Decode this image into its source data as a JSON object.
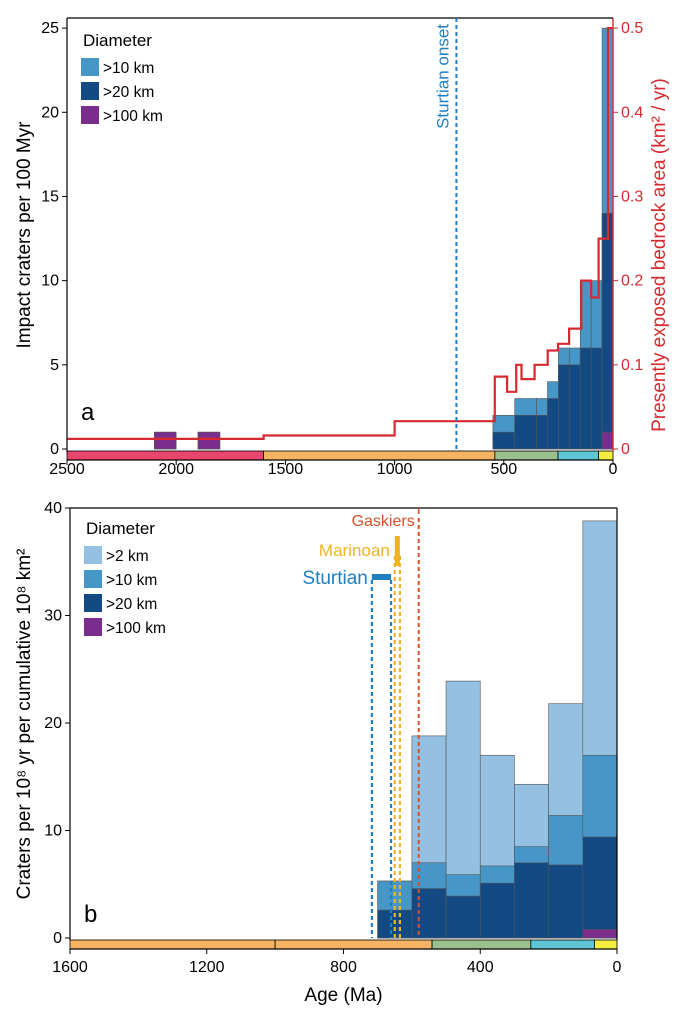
{
  "chart_data": [
    {
      "type": "bar",
      "panel_label": "a",
      "xlabel": "",
      "ylabel": "Impact craters per 100 Myr",
      "y2label": "Presently exposed bedrock area (km² / yr)",
      "xlim": [
        2500,
        0
      ],
      "ylim": [
        0,
        25.6
      ],
      "y2lim": [
        0,
        0.512
      ],
      "xticks": [
        "2500",
        "2000",
        "1500",
        "1000",
        "500",
        "0"
      ],
      "yticks": [
        "0",
        "5",
        "10",
        "15",
        "20",
        "25"
      ],
      "y2ticks": [
        "0",
        "0.1",
        "0.2",
        "0.3",
        "0.4",
        "0.5"
      ],
      "legend_title": "Diameter",
      "legend_position": "top-left",
      "series": [
        {
          "name": ">10 km",
          "color": "#4796c8",
          "bins": [
            [
              750,
              650,
              0
            ],
            [
              650,
              550,
              0
            ],
            [
              550,
              450,
              2
            ],
            [
              450,
              350,
              3
            ],
            [
              350,
              300,
              3
            ],
            [
              300,
              250,
              4
            ],
            [
              250,
              200,
              6
            ],
            [
              200,
              150,
              6
            ],
            [
              150,
              100,
              10
            ],
            [
              100,
              50,
              10
            ],
            [
              50,
              0,
              25
            ]
          ]
        },
        {
          "name": ">20 km",
          "color": "#134a84",
          "bins": [
            [
              2100,
              2000,
              1
            ],
            [
              1900,
              1800,
              1
            ],
            [
              550,
              450,
              1
            ],
            [
              450,
              350,
              2
            ],
            [
              350,
              300,
              2
            ],
            [
              300,
              250,
              3
            ],
            [
              250,
              200,
              5
            ],
            [
              200,
              150,
              5
            ],
            [
              150,
              100,
              6
            ],
            [
              100,
              50,
              6
            ],
            [
              50,
              0,
              14
            ]
          ]
        },
        {
          "name": ">100 km",
          "color": "#7a2d8c",
          "bins": [
            [
              2100,
              2000,
              1
            ],
            [
              1900,
              1800,
              1
            ],
            [
              50,
              0,
              1
            ]
          ]
        }
      ],
      "area_line": {
        "color": "#d62a30",
        "steps": [
          [
            2500,
            0.012
          ],
          [
            1600,
            0.012
          ],
          [
            1600,
            0.016
          ],
          [
            1000,
            0.016
          ],
          [
            1000,
            0.033
          ],
          [
            541,
            0.033
          ],
          [
            541,
            0.086
          ],
          [
            485,
            0.086
          ],
          [
            485,
            0.068
          ],
          [
            443,
            0.068
          ],
          [
            443,
            0.1
          ],
          [
            419,
            0.1
          ],
          [
            419,
            0.083
          ],
          [
            359,
            0.083
          ],
          [
            359,
            0.1
          ],
          [
            299,
            0.1
          ],
          [
            299,
            0.117
          ],
          [
            252,
            0.117
          ],
          [
            252,
            0.125
          ],
          [
            201,
            0.125
          ],
          [
            201,
            0.143
          ],
          [
            145,
            0.143
          ],
          [
            145,
            0.2
          ],
          [
            100,
            0.2
          ],
          [
            100,
            0.18
          ],
          [
            66,
            0.18
          ],
          [
            66,
            0.25
          ],
          [
            23,
            0.25
          ],
          [
            23,
            0.5
          ],
          [
            0,
            0.5
          ]
        ]
      },
      "annotations": [
        {
          "text": "Sturtian onset",
          "x": 717,
          "color": "#1f7fc0",
          "style": "dashed"
        }
      ],
      "timescale": [
        {
          "from": 2500,
          "to": 1600,
          "color": "#e8466e"
        },
        {
          "from": 1600,
          "to": 541,
          "color": "#f6b462"
        },
        {
          "from": 541,
          "to": 252,
          "color": "#99c08d"
        },
        {
          "from": 252,
          "to": 66,
          "color": "#5dc5d3"
        },
        {
          "from": 66,
          "to": 0,
          "color": "#f4ec3e"
        }
      ]
    },
    {
      "type": "bar",
      "panel_label": "b",
      "xlabel": "Age (Ma)",
      "ylabel": "Craters per 10⁸ yr per cumulative 10⁸ km²",
      "xlim": [
        1600,
        0
      ],
      "ylim": [
        0,
        40
      ],
      "xticks": [
        "1600",
        "1200",
        "800",
        "400",
        "0"
      ],
      "yticks": [
        "0",
        "10",
        "20",
        "30",
        "40"
      ],
      "legend_title": "Diameter",
      "legend_position": "top-left",
      "series": [
        {
          "name": ">2 km",
          "color": "#94c0e2",
          "bins": [
            [
              700,
              600,
              5.3
            ],
            [
              600,
              500,
              18.8
            ],
            [
              500,
              400,
              23.9
            ],
            [
              400,
              300,
              17
            ],
            [
              300,
              200,
              14.3
            ],
            [
              200,
              100,
              21.8
            ],
            [
              100,
              0,
              38.8
            ]
          ]
        },
        {
          "name": ">10 km",
          "color": "#4796c8",
          "bins": [
            [
              700,
              600,
              5.3
            ],
            [
              600,
              500,
              7
            ],
            [
              500,
              400,
              5.9
            ],
            [
              400,
              300,
              6.7
            ],
            [
              300,
              200,
              8.5
            ],
            [
              200,
              100,
              11.4
            ],
            [
              100,
              0,
              17
            ]
          ]
        },
        {
          "name": ">20 km",
          "color": "#134a84",
          "bins": [
            [
              700,
              600,
              2.6
            ],
            [
              600,
              500,
              4.6
            ],
            [
              500,
              400,
              3.9
            ],
            [
              400,
              300,
              5.1
            ],
            [
              300,
              200,
              7
            ],
            [
              200,
              100,
              6.8
            ],
            [
              100,
              0,
              9.4
            ]
          ]
        },
        {
          "name": ">100 km",
          "color": "#7a2d8c",
          "bins": [
            [
              100,
              0,
              0.8
            ]
          ]
        }
      ],
      "annotations": [
        {
          "text": "Sturtian",
          "x_start": 717,
          "x_end": 661,
          "color": "#1f7fc0",
          "style": "dashed-bar"
        },
        {
          "text": "Marinoan",
          "x_start": 650,
          "x_end": 635,
          "color": "#f0b323",
          "style": "dashed-bar"
        },
        {
          "text": "Gaskiers",
          "x": 580,
          "color": "#d65128",
          "style": "dashed"
        }
      ],
      "timescale": [
        {
          "from": 1600,
          "to": 1000,
          "color": "#f6b462"
        },
        {
          "from": 1000,
          "to": 541,
          "color": "#f6b462"
        },
        {
          "from": 541,
          "to": 252,
          "color": "#99c08d"
        },
        {
          "from": 252,
          "to": 66,
          "color": "#5dc5d3"
        },
        {
          "from": 66,
          "to": 0,
          "color": "#f4ec3e"
        }
      ]
    }
  ]
}
